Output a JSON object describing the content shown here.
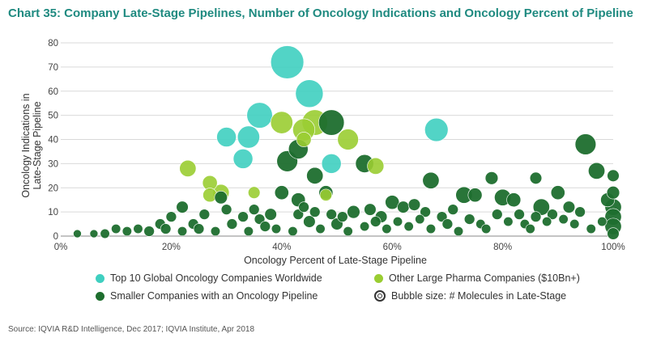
{
  "title": "Chart 35: Company Late-Stage Pipelines, Number of Oncology Indications and Oncology Percent of Pipeline",
  "source": "Source: IQVIA R&D Intelligence, Dec 2017; IQVIA Institute, Apr 2018",
  "legend": {
    "top10": "Top 10 Global Oncology Companies Worldwide",
    "large_pharma": "Other Large Pharma Companies ($10Bn+)",
    "smaller": "Smaller Companies with an Oncology Pipeline",
    "bubble_size": "Bubble size: # Molecules in Late-Stage"
  },
  "colors": {
    "top10": "#3fcfc0",
    "large_pharma": "#9acd32",
    "smaller": "#1e6e2e",
    "title": "#1f8a80"
  },
  "chart_data": {
    "type": "scatter",
    "xlabel": "Oncology Percent of Late-Stage Pipeline",
    "ylabel_lines": [
      "Oncology Indications in",
      "Late-Stage Pipeline"
    ],
    "xlim": [
      0,
      100
    ],
    "ylim": [
      0,
      80
    ],
    "x_ticks": [
      0,
      20,
      40,
      60,
      80,
      100
    ],
    "x_tick_labels": [
      "0%",
      "20%",
      "40%",
      "60%",
      "80%",
      "100%"
    ],
    "y_ticks": [
      0,
      10,
      20,
      30,
      40,
      50,
      60,
      70,
      80
    ],
    "y_tick_labels": [
      "0",
      "10",
      "20",
      "30",
      "40",
      "50",
      "60",
      "70",
      "80"
    ],
    "grid": "horizontal",
    "series": [
      {
        "name": "Top 10 Global Oncology Companies Worldwide",
        "color": "#3fcfc0",
        "points": [
          {
            "x": 41,
            "y": 72,
            "size": 10
          },
          {
            "x": 45,
            "y": 59,
            "size": 7
          },
          {
            "x": 36,
            "y": 50,
            "size": 6
          },
          {
            "x": 34,
            "y": 41,
            "size": 4.5
          },
          {
            "x": 30,
            "y": 41,
            "size": 3.5
          },
          {
            "x": 33,
            "y": 32,
            "size": 3.5
          },
          {
            "x": 68,
            "y": 44,
            "size": 5
          },
          {
            "x": 49,
            "y": 30,
            "size": 3.5
          }
        ]
      },
      {
        "name": "Other Large Pharma Companies ($10Bn+)",
        "color": "#9acd32",
        "points": [
          {
            "x": 40,
            "y": 47,
            "size": 4.5
          },
          {
            "x": 44,
            "y": 44,
            "size": 4.5
          },
          {
            "x": 46,
            "y": 47,
            "size": 6
          },
          {
            "x": 52,
            "y": 40,
            "size": 4
          },
          {
            "x": 57,
            "y": 29,
            "size": 2.5
          },
          {
            "x": 23,
            "y": 28,
            "size": 2.5
          },
          {
            "x": 27,
            "y": 22,
            "size": 2
          },
          {
            "x": 29,
            "y": 18,
            "size": 2.5
          },
          {
            "x": 27,
            "y": 17,
            "size": 1.8
          },
          {
            "x": 35,
            "y": 18,
            "size": 1.3
          },
          {
            "x": 44,
            "y": 40,
            "size": 2
          },
          {
            "x": 48,
            "y": 17,
            "size": 1.3
          }
        ]
      },
      {
        "name": "Smaller Companies with an Oncology Pipeline",
        "color": "#1e6e2e",
        "points": [
          {
            "x": 49,
            "y": 47,
            "size": 6
          },
          {
            "x": 43,
            "y": 36,
            "size": 3.5
          },
          {
            "x": 41,
            "y": 31,
            "size": 4
          },
          {
            "x": 55,
            "y": 30,
            "size": 3
          },
          {
            "x": 46,
            "y": 25,
            "size": 2.5
          },
          {
            "x": 67,
            "y": 23,
            "size": 2.5
          },
          {
            "x": 95,
            "y": 38,
            "size": 4
          },
          {
            "x": 97,
            "y": 27,
            "size": 2.5
          },
          {
            "x": 100,
            "y": 25,
            "size": 1.3
          },
          {
            "x": 40,
            "y": 18,
            "size": 1.8
          },
          {
            "x": 43,
            "y": 15,
            "size": 1.8
          },
          {
            "x": 48,
            "y": 18,
            "size": 1.8
          },
          {
            "x": 22,
            "y": 12,
            "size": 1.3
          },
          {
            "x": 29,
            "y": 16,
            "size": 1.5
          },
          {
            "x": 73,
            "y": 17,
            "size": 2.5
          },
          {
            "x": 75,
            "y": 17,
            "size": 1.8
          },
          {
            "x": 78,
            "y": 24,
            "size": 1.5
          },
          {
            "x": 80,
            "y": 16,
            "size": 2.5
          },
          {
            "x": 82,
            "y": 15,
            "size": 1.8
          },
          {
            "x": 86,
            "y": 24,
            "size": 1.3
          },
          {
            "x": 87,
            "y": 12,
            "size": 2.5
          },
          {
            "x": 90,
            "y": 18,
            "size": 1.8
          },
          {
            "x": 92,
            "y": 12,
            "size": 1.3
          },
          {
            "x": 99,
            "y": 15,
            "size": 1.8
          },
          {
            "x": 100,
            "y": 12,
            "size": 2.5
          },
          {
            "x": 100,
            "y": 8,
            "size": 2.5
          },
          {
            "x": 100,
            "y": 4,
            "size": 2.5
          },
          {
            "x": 100,
            "y": 18,
            "size": 1.5
          },
          {
            "x": 100,
            "y": 1,
            "size": 1.3
          },
          {
            "x": 60,
            "y": 14,
            "size": 1.8
          },
          {
            "x": 62,
            "y": 12,
            "size": 1.3
          },
          {
            "x": 64,
            "y": 13,
            "size": 1.3
          },
          {
            "x": 53,
            "y": 10,
            "size": 1.5
          },
          {
            "x": 56,
            "y": 11,
            "size": 1.3
          },
          {
            "x": 58,
            "y": 8,
            "size": 1.3
          },
          {
            "x": 51,
            "y": 8,
            "size": 1
          },
          {
            "x": 50,
            "y": 5,
            "size": 1.3
          },
          {
            "x": 45,
            "y": 6,
            "size": 1.3
          },
          {
            "x": 43,
            "y": 9,
            "size": 1
          },
          {
            "x": 38,
            "y": 9,
            "size": 1.3
          },
          {
            "x": 36,
            "y": 7,
            "size": 1
          },
          {
            "x": 33,
            "y": 8,
            "size": 1
          },
          {
            "x": 31,
            "y": 5,
            "size": 1
          },
          {
            "x": 26,
            "y": 9,
            "size": 1
          },
          {
            "x": 24,
            "y": 5,
            "size": 1
          },
          {
            "x": 20,
            "y": 8,
            "size": 1
          },
          {
            "x": 18,
            "y": 5,
            "size": 1
          },
          {
            "x": 16,
            "y": 2,
            "size": 1
          },
          {
            "x": 14,
            "y": 3,
            "size": 0.8
          },
          {
            "x": 12,
            "y": 2,
            "size": 0.8
          },
          {
            "x": 10,
            "y": 3,
            "size": 0.8
          },
          {
            "x": 8,
            "y": 1,
            "size": 0.8
          },
          {
            "x": 3,
            "y": 1,
            "size": 0.6
          },
          {
            "x": 6,
            "y": 1,
            "size": 0.6
          },
          {
            "x": 22,
            "y": 2,
            "size": 0.8
          },
          {
            "x": 28,
            "y": 2,
            "size": 0.8
          },
          {
            "x": 34,
            "y": 2,
            "size": 0.8
          },
          {
            "x": 39,
            "y": 3,
            "size": 0.8
          },
          {
            "x": 42,
            "y": 2,
            "size": 0.8
          },
          {
            "x": 47,
            "y": 3,
            "size": 0.8
          },
          {
            "x": 52,
            "y": 2,
            "size": 0.8
          },
          {
            "x": 55,
            "y": 4,
            "size": 0.8
          },
          {
            "x": 59,
            "y": 3,
            "size": 0.8
          },
          {
            "x": 61,
            "y": 6,
            "size": 0.8
          },
          {
            "x": 63,
            "y": 4,
            "size": 0.8
          },
          {
            "x": 65,
            "y": 7,
            "size": 0.8
          },
          {
            "x": 67,
            "y": 3,
            "size": 0.8
          },
          {
            "x": 69,
            "y": 8,
            "size": 1
          },
          {
            "x": 70,
            "y": 5,
            "size": 1
          },
          {
            "x": 72,
            "y": 2,
            "size": 0.8
          },
          {
            "x": 74,
            "y": 7,
            "size": 1
          },
          {
            "x": 76,
            "y": 5,
            "size": 0.8
          },
          {
            "x": 77,
            "y": 3,
            "size": 0.8
          },
          {
            "x": 79,
            "y": 9,
            "size": 1
          },
          {
            "x": 81,
            "y": 6,
            "size": 0.8
          },
          {
            "x": 83,
            "y": 9,
            "size": 1
          },
          {
            "x": 84,
            "y": 5,
            "size": 0.8
          },
          {
            "x": 85,
            "y": 3,
            "size": 0.8
          },
          {
            "x": 86,
            "y": 8,
            "size": 1
          },
          {
            "x": 88,
            "y": 6,
            "size": 0.8
          },
          {
            "x": 89,
            "y": 9,
            "size": 1
          },
          {
            "x": 91,
            "y": 7,
            "size": 0.8
          },
          {
            "x": 93,
            "y": 5,
            "size": 0.8
          },
          {
            "x": 94,
            "y": 10,
            "size": 1
          },
          {
            "x": 96,
            "y": 3,
            "size": 0.8
          },
          {
            "x": 98,
            "y": 6,
            "size": 0.8
          },
          {
            "x": 44,
            "y": 12,
            "size": 1
          },
          {
            "x": 46,
            "y": 10,
            "size": 1
          },
          {
            "x": 49,
            "y": 9,
            "size": 1
          },
          {
            "x": 57,
            "y": 6,
            "size": 1
          },
          {
            "x": 66,
            "y": 10,
            "size": 1
          },
          {
            "x": 71,
            "y": 11,
            "size": 1
          },
          {
            "x": 19,
            "y": 3,
            "size": 1
          },
          {
            "x": 25,
            "y": 3,
            "size": 1
          },
          {
            "x": 30,
            "y": 11,
            "size": 1
          },
          {
            "x": 35,
            "y": 11,
            "size": 1
          },
          {
            "x": 37,
            "y": 4,
            "size": 1
          }
        ]
      }
    ]
  }
}
